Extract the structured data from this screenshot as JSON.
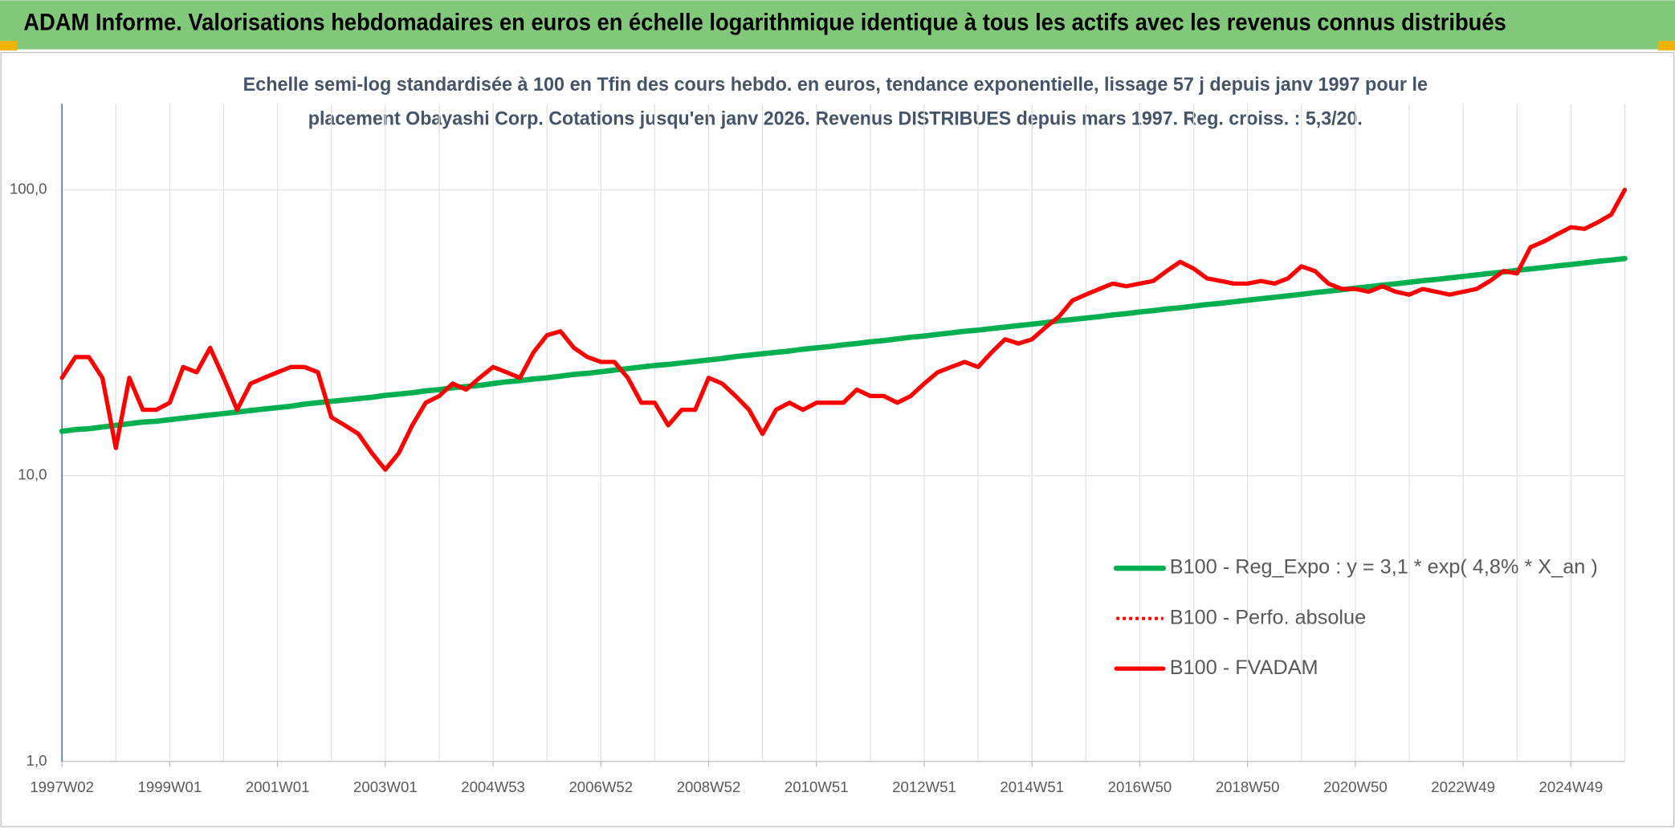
{
  "chart_data": {
    "type": "line",
    "title": "ADAM Informe. Valorisations hebdomadaires en euros en échelle logarithmique identique à tous les actifs avec les revenus connus distribués",
    "subtitle": [
      "Echelle semi-log standardisée à 100 en Tfin des cours hebdo. en euros, tendance exponentielle, lissage 57 j depuis janv 1997 pour le",
      "placement Obayashi Corp. Cotations jusqu'en janv 2026. Revenus DISTRIBUES depuis mars 1997. Reg. croiss. : 5,3/20."
    ],
    "categories": [
      "1997W02",
      null,
      null,
      null,
      null,
      null,
      null,
      null,
      "1999W01",
      null,
      null,
      null,
      null,
      null,
      null,
      null,
      "2001W01",
      null,
      null,
      null,
      null,
      null,
      null,
      null,
      "2003W01",
      null,
      null,
      null,
      null,
      null,
      null,
      null,
      "2004W53",
      null,
      null,
      null,
      null,
      null,
      null,
      null,
      "2006W52",
      null,
      null,
      null,
      null,
      null,
      null,
      null,
      "2008W52",
      null,
      null,
      null,
      null,
      null,
      null,
      null,
      "2010W51",
      null,
      null,
      null,
      null,
      null,
      null,
      null,
      "2012W51",
      null,
      null,
      null,
      null,
      null,
      null,
      null,
      "2014W51",
      null,
      null,
      null,
      null,
      null,
      null,
      null,
      "2016W50",
      null,
      null,
      null,
      null,
      null,
      null,
      null,
      "2018W50",
      null,
      null,
      null,
      null,
      null,
      null,
      null,
      "2020W50",
      null,
      null,
      null,
      null,
      null,
      null,
      null,
      "2022W49",
      null,
      null,
      null,
      null,
      null,
      null,
      null,
      "2024W49",
      null,
      null,
      null,
      null
    ],
    "series": [
      {
        "name": "B100 - Reg_Expo : y = 3,1 * exp( 4,8% *  X_an )",
        "color": "#00b050",
        "style": "solid",
        "values": [
          14.3,
          14.5,
          14.6,
          14.8,
          15.0,
          15.2,
          15.4,
          15.5,
          15.7,
          15.9,
          16.1,
          16.3,
          16.5,
          16.7,
          16.9,
          17.1,
          17.3,
          17.5,
          17.8,
          18.0,
          18.2,
          18.4,
          18.6,
          18.8,
          19.1,
          19.3,
          19.5,
          19.8,
          20.0,
          20.3,
          20.5,
          20.7,
          21.0,
          21.3,
          21.5,
          21.8,
          22.0,
          22.3,
          22.6,
          22.8,
          23.1,
          23.4,
          23.7,
          24.0,
          24.3,
          24.5,
          24.8,
          25.1,
          25.4,
          25.7,
          26.1,
          26.4,
          26.7,
          27.0,
          27.3,
          27.7,
          28.0,
          28.3,
          28.7,
          29.0,
          29.4,
          29.7,
          30.1,
          30.5,
          30.8,
          31.2,
          31.6,
          32.0,
          32.3,
          32.7,
          33.1,
          33.5,
          33.9,
          34.3,
          34.8,
          35.2,
          35.6,
          36.0,
          36.5,
          36.9,
          37.4,
          37.8,
          38.3,
          38.7,
          39.2,
          39.7,
          40.1,
          40.6,
          41.1,
          41.6,
          42.1,
          42.6,
          43.1,
          43.7,
          44.2,
          44.7,
          45.3,
          45.8,
          46.4,
          46.9,
          47.5,
          48.1,
          48.6,
          49.2,
          49.8,
          50.4,
          51.0,
          51.6,
          52.3,
          52.9,
          53.5,
          54.2,
          54.8,
          55.5,
          56.2,
          56.8,
          57.5
        ]
      },
      {
        "name": "B100 - Perfo. absolue",
        "color": "#ff0000",
        "style": "dotted",
        "values": [
          22,
          26,
          26,
          22,
          12.5,
          22,
          17,
          17,
          18,
          24,
          23,
          28,
          22,
          17,
          21,
          22,
          23,
          24,
          24,
          23,
          16,
          15,
          14,
          12,
          10.5,
          12,
          15,
          18,
          19,
          21,
          20,
          22,
          24,
          23,
          22,
          27,
          31,
          32,
          28,
          26,
          25,
          25,
          22,
          18,
          18,
          15,
          17,
          17,
          22,
          21,
          19,
          17,
          14,
          17,
          18,
          17,
          18,
          18,
          18,
          20,
          19,
          19,
          18,
          19,
          21,
          23,
          24,
          25,
          24,
          27,
          30,
          29,
          30,
          33,
          36,
          41,
          43,
          45,
          47,
          46,
          47,
          48,
          52,
          56,
          53,
          49,
          48,
          47,
          47,
          48,
          47,
          49,
          54,
          52,
          47,
          45,
          45,
          44,
          46,
          44,
          43,
          45,
          44,
          43,
          44,
          45,
          48,
          52,
          51,
          63,
          66,
          70,
          74,
          73,
          77,
          82,
          100
        ]
      },
      {
        "name": "B100 - FVADAM",
        "color": "#ff0000",
        "style": "solid",
        "values": [
          22,
          26,
          26,
          22,
          12.5,
          22,
          17,
          17,
          18,
          24,
          23,
          28,
          22,
          17,
          21,
          22,
          23,
          24,
          24,
          23,
          16,
          15,
          14,
          12,
          10.5,
          12,
          15,
          18,
          19,
          21,
          20,
          22,
          24,
          23,
          22,
          27,
          31,
          32,
          28,
          26,
          25,
          25,
          22,
          18,
          18,
          15,
          17,
          17,
          22,
          21,
          19,
          17,
          14,
          17,
          18,
          17,
          18,
          18,
          18,
          20,
          19,
          19,
          18,
          19,
          21,
          23,
          24,
          25,
          24,
          27,
          30,
          29,
          30,
          33,
          36,
          41,
          43,
          45,
          47,
          46,
          47,
          48,
          52,
          56,
          53,
          49,
          48,
          47,
          47,
          48,
          47,
          49,
          54,
          52,
          47,
          45,
          45,
          44,
          46,
          44,
          43,
          45,
          44,
          43,
          44,
          45,
          48,
          52,
          51,
          63,
          66,
          70,
          74,
          73,
          77,
          82,
          100
        ]
      }
    ],
    "ylim": [
      1,
      200
    ],
    "yticks": [
      {
        "value": 1,
        "label": "1,0"
      },
      {
        "value": 10,
        "label": "10,0"
      },
      {
        "value": 100,
        "label": "100,0"
      }
    ],
    "log_y": true,
    "grid": true,
    "legend": "lower right"
  }
}
